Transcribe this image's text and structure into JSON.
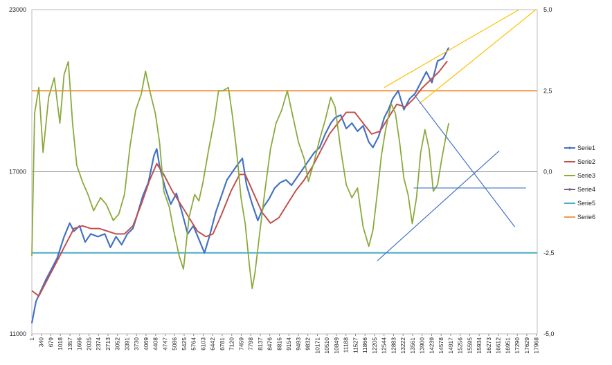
{
  "chart_data": {
    "type": "line",
    "title": "",
    "y_left": {
      "min": 11000,
      "max": 23000,
      "ticks": [
        "11000",
        "17000",
        "23000"
      ]
    },
    "y_right": {
      "min": -5,
      "max": 5,
      "ticks": [
        "-5,0",
        "-2,5",
        "0,0",
        "2,5",
        "5,0"
      ]
    },
    "x_range": [
      1,
      18000
    ],
    "x_tick_labels": [
      "1",
      "340",
      "679",
      "1018",
      "1357",
      "1696",
      "2035",
      "2374",
      "2713",
      "3052",
      "3391",
      "3730",
      "4069",
      "4408",
      "4747",
      "5086",
      "5425",
      "5764",
      "6103",
      "6442",
      "6781",
      "7120",
      "7459",
      "7798",
      "8137",
      "8476",
      "8815",
      "9154",
      "9493",
      "9832",
      "10171",
      "10510",
      "10849",
      "11188",
      "11527",
      "11866",
      "12205",
      "12544",
      "12883",
      "13222",
      "13561",
      "13900",
      "14239",
      "14578",
      "14917",
      "15256",
      "15595",
      "15934",
      "16273",
      "16612",
      "16951",
      "17290",
      "17629",
      "17968"
    ],
    "grid": "horizontal",
    "legend_position": "right",
    "series": [
      {
        "name": "Serie1",
        "axis": "left",
        "color": "#4472c4",
        "points": [
          [
            1,
            11400
          ],
          [
            150,
            12200
          ],
          [
            500,
            13000
          ],
          [
            900,
            13800
          ],
          [
            1150,
            14600
          ],
          [
            1350,
            15100
          ],
          [
            1500,
            14800
          ],
          [
            1700,
            15000
          ],
          [
            1900,
            14400
          ],
          [
            2100,
            14700
          ],
          [
            2350,
            14600
          ],
          [
            2600,
            14700
          ],
          [
            2800,
            14200
          ],
          [
            3000,
            14600
          ],
          [
            3200,
            14300
          ],
          [
            3400,
            14700
          ],
          [
            3600,
            14900
          ],
          [
            3750,
            15400
          ],
          [
            3950,
            16100
          ],
          [
            4150,
            16600
          ],
          [
            4350,
            17600
          ],
          [
            4450,
            17850
          ],
          [
            4550,
            17200
          ],
          [
            4750,
            16400
          ],
          [
            4950,
            15800
          ],
          [
            5150,
            16200
          ],
          [
            5350,
            15500
          ],
          [
            5550,
            14700
          ],
          [
            5750,
            15000
          ],
          [
            5950,
            14500
          ],
          [
            6150,
            14000
          ],
          [
            6350,
            14700
          ],
          [
            6550,
            15500
          ],
          [
            6750,
            16100
          ],
          [
            6950,
            16700
          ],
          [
            7150,
            17000
          ],
          [
            7350,
            17300
          ],
          [
            7500,
            17500
          ],
          [
            7650,
            16500
          ],
          [
            7850,
            15800
          ],
          [
            8050,
            15200
          ],
          [
            8250,
            15700
          ],
          [
            8450,
            16000
          ],
          [
            8650,
            16400
          ],
          [
            8850,
            16600
          ],
          [
            9050,
            16700
          ],
          [
            9250,
            16500
          ],
          [
            9450,
            16800
          ],
          [
            9650,
            17100
          ],
          [
            9850,
            17400
          ],
          [
            10050,
            17700
          ],
          [
            10250,
            17900
          ],
          [
            10450,
            18400
          ],
          [
            10650,
            18800
          ],
          [
            10800,
            19000
          ],
          [
            11000,
            19100
          ],
          [
            11200,
            18600
          ],
          [
            11400,
            18800
          ],
          [
            11600,
            18500
          ],
          [
            11800,
            18700
          ],
          [
            12000,
            18100
          ],
          [
            12150,
            17900
          ],
          [
            12350,
            18300
          ],
          [
            12550,
            19000
          ],
          [
            12700,
            19300
          ],
          [
            12850,
            19700
          ],
          [
            13050,
            20000
          ],
          [
            13250,
            19300
          ],
          [
            13450,
            19700
          ],
          [
            13650,
            19900
          ],
          [
            13850,
            20300
          ],
          [
            14050,
            20700
          ],
          [
            14250,
            20300
          ],
          [
            14450,
            21100
          ],
          [
            14650,
            21200
          ],
          [
            14850,
            21600
          ]
        ]
      },
      {
        "name": "Serie2",
        "axis": "left",
        "color": "#c0504d",
        "points": [
          [
            1,
            12600
          ],
          [
            250,
            12400
          ],
          [
            550,
            13000
          ],
          [
            900,
            13700
          ],
          [
            1200,
            14300
          ],
          [
            1500,
            14900
          ],
          [
            1800,
            15000
          ],
          [
            2100,
            14900
          ],
          [
            2400,
            14900
          ],
          [
            2700,
            14800
          ],
          [
            3000,
            14700
          ],
          [
            3300,
            14700
          ],
          [
            3600,
            15000
          ],
          [
            3900,
            15800
          ],
          [
            4200,
            16700
          ],
          [
            4450,
            17300
          ],
          [
            4700,
            16900
          ],
          [
            5000,
            16300
          ],
          [
            5300,
            15800
          ],
          [
            5600,
            15300
          ],
          [
            5900,
            14800
          ],
          [
            6200,
            14600
          ],
          [
            6450,
            14700
          ],
          [
            6750,
            15400
          ],
          [
            7100,
            16300
          ],
          [
            7400,
            16900
          ],
          [
            7600,
            16900
          ],
          [
            7900,
            16200
          ],
          [
            8200,
            15500
          ],
          [
            8500,
            15100
          ],
          [
            8800,
            15300
          ],
          [
            9100,
            15800
          ],
          [
            9400,
            16300
          ],
          [
            9700,
            16700
          ],
          [
            10000,
            17200
          ],
          [
            10300,
            17800
          ],
          [
            10600,
            18400
          ],
          [
            10900,
            18800
          ],
          [
            11200,
            19200
          ],
          [
            11500,
            19200
          ],
          [
            11800,
            18800
          ],
          [
            12100,
            18400
          ],
          [
            12400,
            18500
          ],
          [
            12700,
            19000
          ],
          [
            13000,
            19500
          ],
          [
            13300,
            19400
          ],
          [
            13600,
            19700
          ],
          [
            13900,
            20100
          ],
          [
            14200,
            20400
          ],
          [
            14500,
            20700
          ],
          [
            14800,
            21100
          ]
        ]
      },
      {
        "name": "Serie3",
        "axis": "right",
        "color": "#8aaa3c",
        "points": [
          [
            1,
            -2.6
          ],
          [
            100,
            1.8
          ],
          [
            250,
            2.6
          ],
          [
            400,
            0.6
          ],
          [
            600,
            2.3
          ],
          [
            800,
            2.9
          ],
          [
            1000,
            1.5
          ],
          [
            1150,
            3.0
          ],
          [
            1300,
            3.4
          ],
          [
            1450,
            1.5
          ],
          [
            1600,
            0.2
          ],
          [
            1800,
            -0.3
          ],
          [
            2000,
            -0.7
          ],
          [
            2200,
            -1.2
          ],
          [
            2450,
            -0.8
          ],
          [
            2650,
            -1.0
          ],
          [
            2900,
            -1.5
          ],
          [
            3100,
            -1.3
          ],
          [
            3300,
            -0.7
          ],
          [
            3500,
            0.8
          ],
          [
            3700,
            1.9
          ],
          [
            3900,
            2.4
          ],
          [
            4050,
            3.1
          ],
          [
            4200,
            2.5
          ],
          [
            4400,
            1.8
          ],
          [
            4550,
            0.9
          ],
          [
            4700,
            -0.6
          ],
          [
            4900,
            -1.1
          ],
          [
            5050,
            -1.8
          ],
          [
            5250,
            -2.6
          ],
          [
            5400,
            -3.0
          ],
          [
            5600,
            -1.4
          ],
          [
            5800,
            -0.7
          ],
          [
            5950,
            -0.9
          ],
          [
            6100,
            -0.3
          ],
          [
            6300,
            0.7
          ],
          [
            6500,
            1.6
          ],
          [
            6650,
            2.5
          ],
          [
            6800,
            2.5
          ],
          [
            7000,
            2.6
          ],
          [
            7150,
            1.7
          ],
          [
            7300,
            0.6
          ],
          [
            7450,
            -0.8
          ],
          [
            7600,
            -1.6
          ],
          [
            7750,
            -2.9
          ],
          [
            7850,
            -3.6
          ],
          [
            7950,
            -3.1
          ],
          [
            8100,
            -2.0
          ],
          [
            8300,
            -0.6
          ],
          [
            8500,
            0.7
          ],
          [
            8700,
            1.5
          ],
          [
            8900,
            1.9
          ],
          [
            9100,
            2.5
          ],
          [
            9300,
            1.7
          ],
          [
            9500,
            0.9
          ],
          [
            9700,
            0.4
          ],
          [
            9850,
            -0.3
          ],
          [
            10050,
            0.3
          ],
          [
            10250,
            1.0
          ],
          [
            10450,
            1.6
          ],
          [
            10650,
            2.3
          ],
          [
            10800,
            2.0
          ],
          [
            11000,
            0.7
          ],
          [
            11200,
            -0.4
          ],
          [
            11400,
            -0.8
          ],
          [
            11600,
            -0.5
          ],
          [
            11800,
            -1.7
          ],
          [
            12000,
            -2.3
          ],
          [
            12150,
            -1.8
          ],
          [
            12300,
            -0.7
          ],
          [
            12450,
            0.5
          ],
          [
            12600,
            1.3
          ],
          [
            12800,
            2.1
          ],
          [
            12950,
            1.8
          ],
          [
            13100,
            0.9
          ],
          [
            13250,
            -0.2
          ],
          [
            13400,
            -0.7
          ],
          [
            13550,
            -1.6
          ],
          [
            13700,
            -0.8
          ],
          [
            13850,
            0.6
          ],
          [
            14000,
            1.3
          ],
          [
            14150,
            0.7
          ],
          [
            14300,
            -0.6
          ],
          [
            14450,
            -0.4
          ],
          [
            14600,
            0.4
          ],
          [
            14750,
            1.1
          ],
          [
            14850,
            1.5
          ]
        ]
      },
      {
        "name": "Serie4",
        "axis": "right",
        "color": "#7f6084",
        "points": []
      },
      {
        "name": "Serie5",
        "axis": "right",
        "color": "#4bacc6",
        "points": [
          [
            1,
            -2.5
          ],
          [
            17968,
            -2.5
          ]
        ]
      },
      {
        "name": "Serie6",
        "axis": "right",
        "color": "#f79646",
        "points": [
          [
            1,
            2.5
          ],
          [
            17968,
            2.5
          ]
        ]
      }
    ],
    "annotations": [
      {
        "color": "#ffc000",
        "from": [
          12550,
          2.6
        ],
        "to": [
          17350,
          5.0
        ]
      },
      {
        "color": "#ffc000",
        "from": [
          13800,
          2.1
        ],
        "to": [
          17950,
          5.0
        ]
      },
      {
        "color": "#4472c4",
        "from": [
          12300,
          -2.75
        ],
        "to": [
          16650,
          0.65
        ]
      },
      {
        "color": "#4472c4",
        "from": [
          13600,
          2.4
        ],
        "to": [
          17200,
          -1.7
        ]
      },
      {
        "color": "#4472c4",
        "from": [
          13600,
          -0.5
        ],
        "to": [
          17600,
          -0.5
        ]
      }
    ]
  }
}
